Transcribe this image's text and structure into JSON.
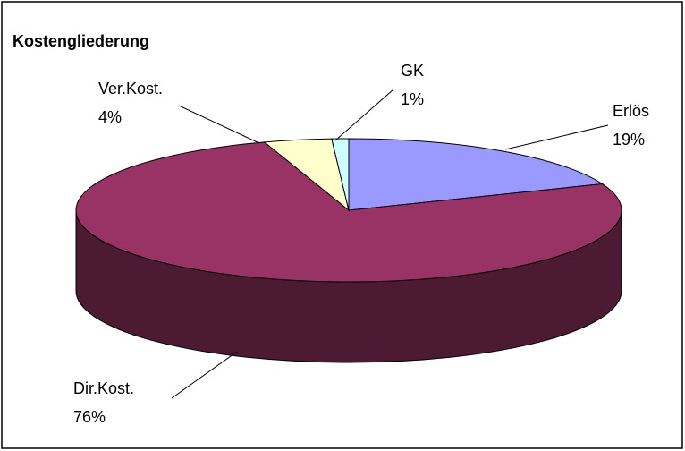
{
  "chart_data": {
    "type": "pie",
    "title": "Kostengliederung",
    "categories": [
      "Erlös",
      "Dir.Kost.",
      "Ver.Kost.",
      "GK"
    ],
    "values": [
      19,
      76,
      4,
      1
    ],
    "value_labels": [
      "19%",
      "76%",
      "4%",
      "1%"
    ],
    "colors": [
      "#9999ff",
      "#993366",
      "#ffffcc",
      "#ccffff"
    ],
    "three_d": true
  }
}
